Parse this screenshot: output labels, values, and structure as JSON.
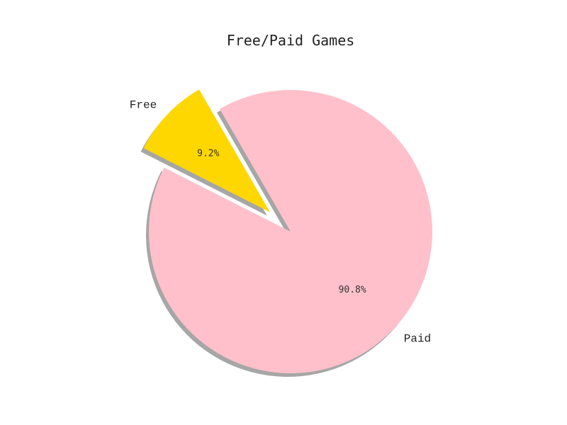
{
  "chart_data": {
    "type": "pie",
    "title": "Free/Paid Games",
    "slices": [
      {
        "label": "Free",
        "value": 9.2,
        "pct_label": "9.2%",
        "color": "#FFD700",
        "exploded": true
      },
      {
        "label": "Paid",
        "value": 90.8,
        "pct_label": "90.8%",
        "color": "#FFC0CB",
        "exploded": false
      }
    ],
    "start_angle_deg": 120,
    "shadow": true
  }
}
